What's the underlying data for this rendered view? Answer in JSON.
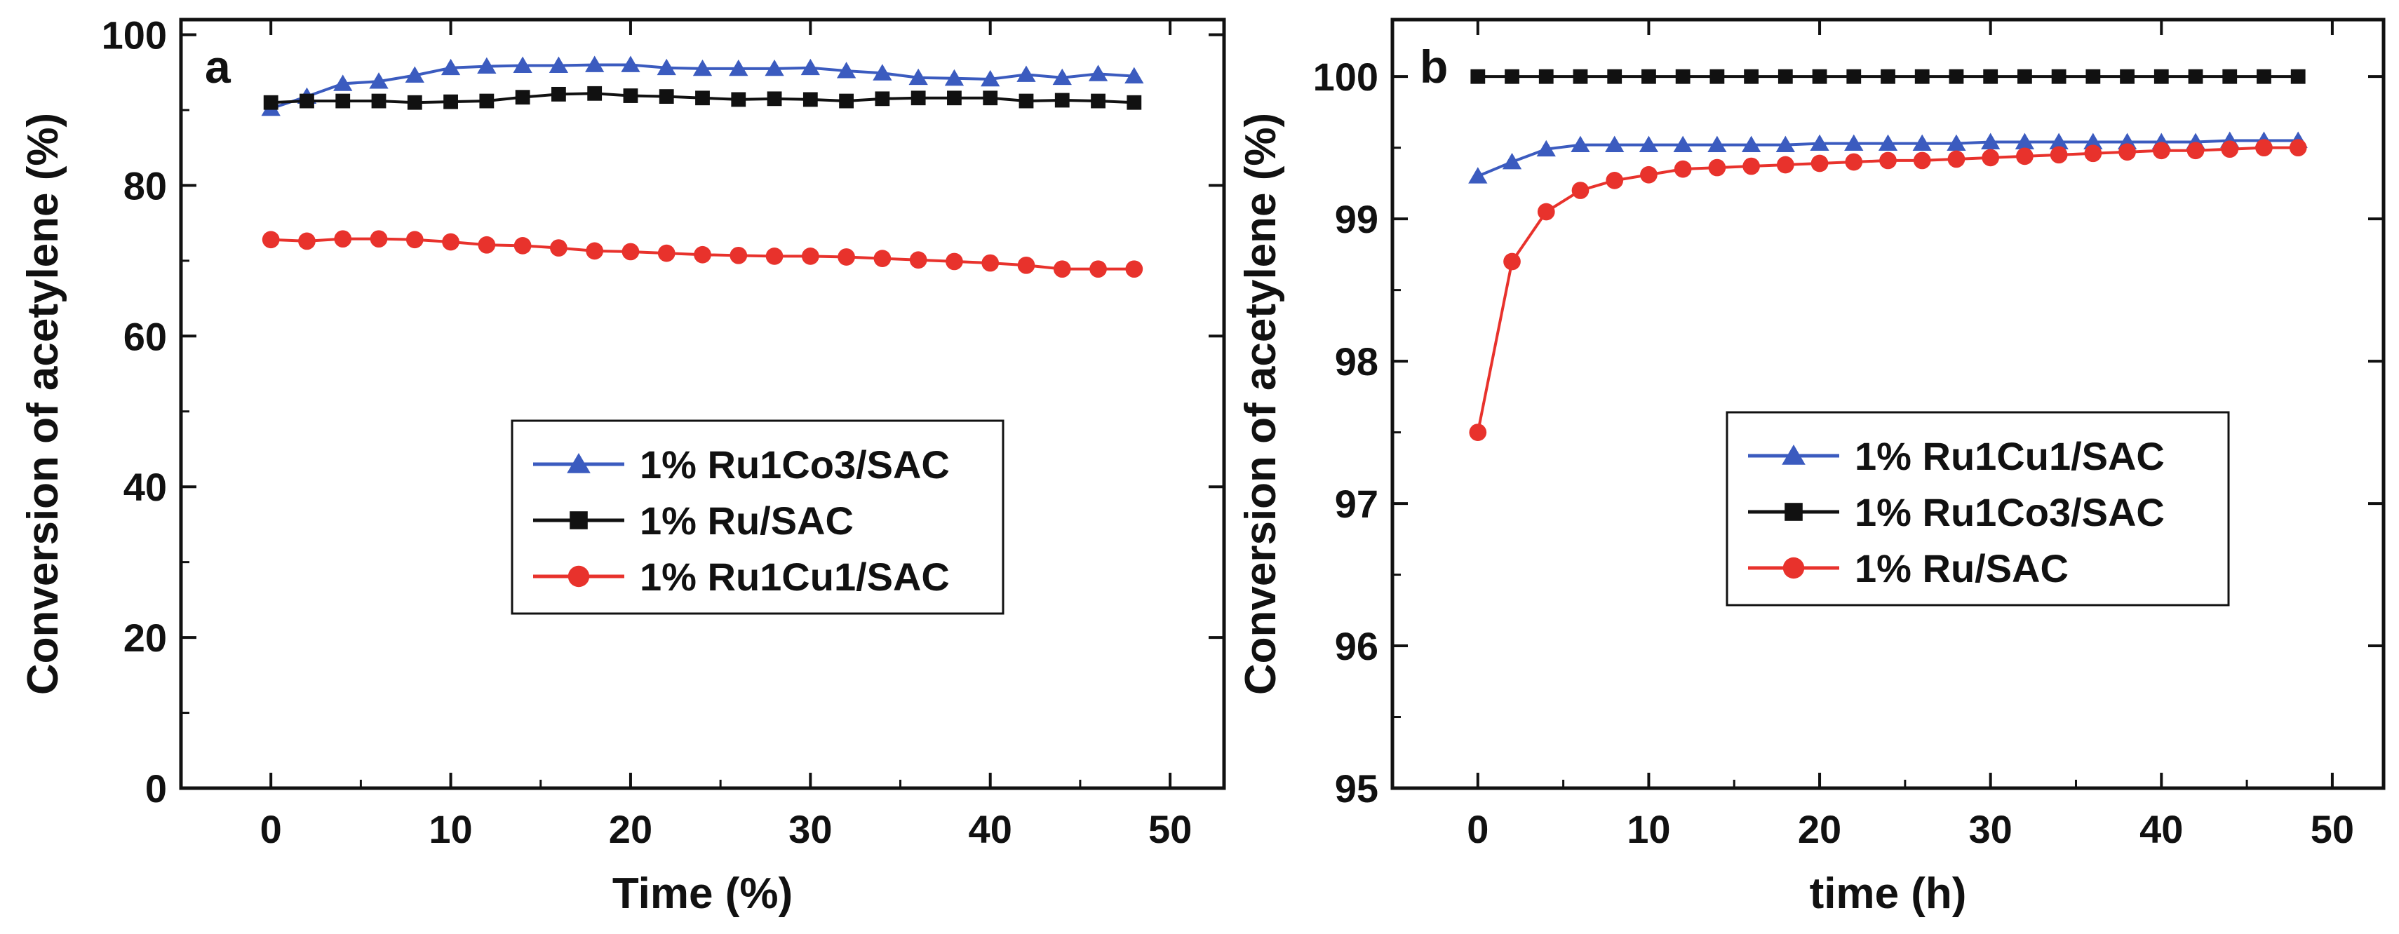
{
  "chart_data": [
    {
      "type": "line",
      "panel_label": "a",
      "xlabel": "Time (%)",
      "ylabel": "Conversion of acetylene (%)",
      "xlim": [
        -5,
        53
      ],
      "ylim": [
        0,
        102
      ],
      "xticks": [
        0,
        10,
        20,
        30,
        40,
        50
      ],
      "yticks": [
        0,
        20,
        40,
        60,
        80,
        100
      ],
      "legend_position": "center-right",
      "series": [
        {
          "name": "1% Ru1Co3/SAC",
          "color": "#3b5bbf",
          "marker": "triangle",
          "x": [
            0,
            2,
            4,
            6,
            8,
            10,
            12,
            14,
            16,
            18,
            20,
            22,
            24,
            26,
            28,
            30,
            32,
            34,
            36,
            38,
            40,
            42,
            44,
            46,
            48
          ],
          "y": [
            90.2,
            91.8,
            93.5,
            93.8,
            94.6,
            95.6,
            95.8,
            95.9,
            95.9,
            96.0,
            96.0,
            95.6,
            95.5,
            95.5,
            95.5,
            95.6,
            95.2,
            94.9,
            94.3,
            94.2,
            94.1,
            94.7,
            94.3,
            94.8,
            94.5
          ]
        },
        {
          "name": "1% Ru/SAC",
          "color": "#111111",
          "marker": "square",
          "x": [
            0,
            2,
            4,
            6,
            8,
            10,
            12,
            14,
            16,
            18,
            20,
            22,
            24,
            26,
            28,
            30,
            32,
            34,
            36,
            38,
            40,
            42,
            44,
            46,
            48
          ],
          "y": [
            91.0,
            91.2,
            91.2,
            91.2,
            91.0,
            91.1,
            91.2,
            91.7,
            92.1,
            92.2,
            91.9,
            91.8,
            91.6,
            91.4,
            91.5,
            91.4,
            91.2,
            91.5,
            91.6,
            91.6,
            91.6,
            91.2,
            91.3,
            91.2,
            91.0
          ]
        },
        {
          "name": "1% Ru1Cu1/SAC",
          "color": "#e8322c",
          "marker": "circle",
          "x": [
            0,
            2,
            4,
            6,
            8,
            10,
            12,
            14,
            16,
            18,
            20,
            22,
            24,
            26,
            28,
            30,
            32,
            34,
            36,
            38,
            40,
            42,
            44,
            46,
            48
          ],
          "y": [
            72.8,
            72.6,
            72.9,
            72.9,
            72.8,
            72.5,
            72.1,
            72.0,
            71.7,
            71.3,
            71.2,
            71.0,
            70.8,
            70.7,
            70.6,
            70.6,
            70.5,
            70.3,
            70.1,
            69.9,
            69.7,
            69.4,
            68.9,
            68.9,
            68.9
          ]
        }
      ]
    },
    {
      "type": "line",
      "panel_label": "b",
      "xlabel": "time (h)",
      "ylabel": "Conversion of acetylene (%)",
      "xlim": [
        -5,
        53
      ],
      "ylim": [
        95,
        100.4
      ],
      "xticks": [
        0,
        10,
        20,
        30,
        40,
        50
      ],
      "yticks": [
        95,
        96,
        97,
        98,
        99,
        100
      ],
      "legend_position": "center-right",
      "series": [
        {
          "name": "1% Ru1Cu1/SAC",
          "color": "#3b5bbf",
          "marker": "triangle",
          "x": [
            0,
            2,
            4,
            6,
            8,
            10,
            12,
            14,
            16,
            18,
            20,
            22,
            24,
            26,
            28,
            30,
            32,
            34,
            36,
            38,
            40,
            42,
            44,
            46,
            48
          ],
          "y": [
            99.3,
            99.4,
            99.49,
            99.52,
            99.52,
            99.52,
            99.52,
            99.52,
            99.52,
            99.52,
            99.53,
            99.53,
            99.53,
            99.53,
            99.53,
            99.54,
            99.54,
            99.54,
            99.54,
            99.54,
            99.54,
            99.54,
            99.55,
            99.55,
            99.55
          ]
        },
        {
          "name": "1% Ru1Co3/SAC",
          "color": "#111111",
          "marker": "square",
          "x": [
            0,
            2,
            4,
            6,
            8,
            10,
            12,
            14,
            16,
            18,
            20,
            22,
            24,
            26,
            28,
            30,
            32,
            34,
            36,
            38,
            40,
            42,
            44,
            46,
            48
          ],
          "y": [
            100,
            100,
            100,
            100,
            100,
            100,
            100,
            100,
            100,
            100,
            100,
            100,
            100,
            100,
            100,
            100,
            100,
            100,
            100,
            100,
            100,
            100,
            100,
            100,
            100
          ]
        },
        {
          "name": "1% Ru/SAC",
          "color": "#e8322c",
          "marker": "circle",
          "x": [
            0,
            2,
            4,
            6,
            8,
            10,
            12,
            14,
            16,
            18,
            20,
            22,
            24,
            26,
            28,
            30,
            32,
            34,
            36,
            38,
            40,
            42,
            44,
            46,
            48
          ],
          "y": [
            97.5,
            98.7,
            99.05,
            99.2,
            99.27,
            99.31,
            99.35,
            99.36,
            99.37,
            99.38,
            99.39,
            99.4,
            99.41,
            99.41,
            99.42,
            99.43,
            99.44,
            99.45,
            99.46,
            99.47,
            99.48,
            99.48,
            99.49,
            99.5,
            99.5
          ]
        }
      ]
    }
  ]
}
